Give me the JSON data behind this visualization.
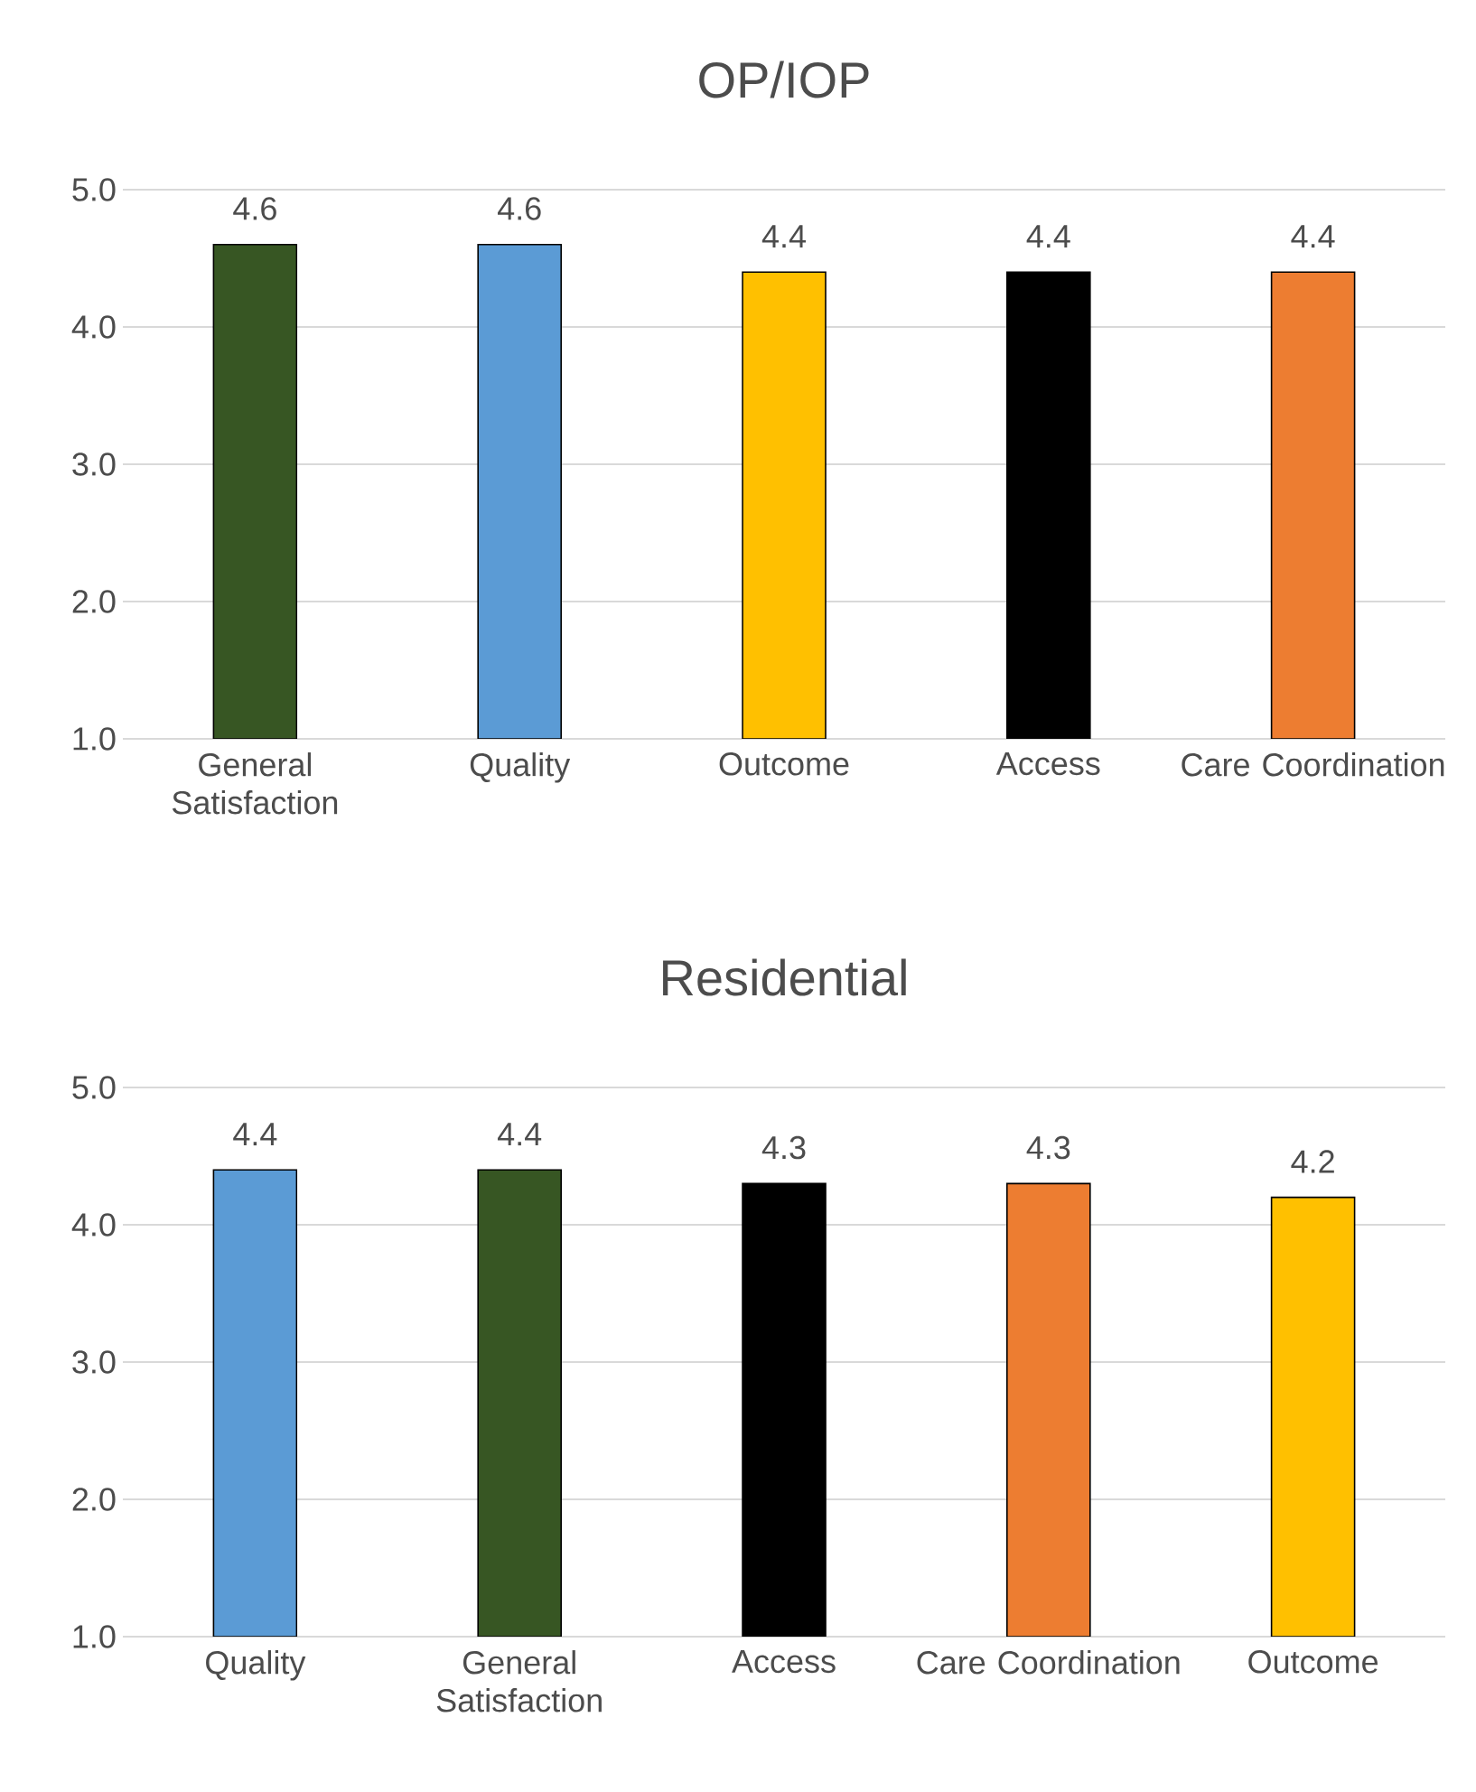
{
  "chart_data": [
    {
      "type": "bar",
      "title": "OP/IOP",
      "categories": [
        "General Satisfaction",
        "Quality",
        "Outcome",
        "Access",
        "Care Coordination"
      ],
      "values": [
        4.6,
        4.6,
        4.4,
        4.4,
        4.4
      ],
      "colors": [
        "#375623",
        "#5b9bd5",
        "#ffc000",
        "#000000",
        "#ed7d31"
      ],
      "ylim": [
        1,
        5
      ],
      "yticks": [
        {
          "value": 1,
          "label": "1.0"
        },
        {
          "value": 2,
          "label": "2.0"
        },
        {
          "value": 3,
          "label": "3.0"
        },
        {
          "value": 4,
          "label": "4.0"
        },
        {
          "value": 5,
          "label": "5.0"
        }
      ],
      "grid": "y",
      "data_labels": true
    },
    {
      "type": "bar",
      "title": "Residential",
      "categories": [
        "Quality",
        "General Satisfaction",
        "Access",
        "Care Coordination",
        "Outcome"
      ],
      "values": [
        4.4,
        4.4,
        4.3,
        4.3,
        4.2
      ],
      "colors": [
        "#5b9bd5",
        "#375623",
        "#000000",
        "#ed7d31",
        "#ffc000"
      ],
      "ylim": [
        1,
        5
      ],
      "yticks": [
        {
          "value": 1,
          "label": "1.0"
        },
        {
          "value": 2,
          "label": "2.0"
        },
        {
          "value": 3,
          "label": "3.0"
        },
        {
          "value": 4,
          "label": "4.0"
        },
        {
          "value": 5,
          "label": "5.0"
        }
      ],
      "grid": "y",
      "data_labels": true
    }
  ]
}
